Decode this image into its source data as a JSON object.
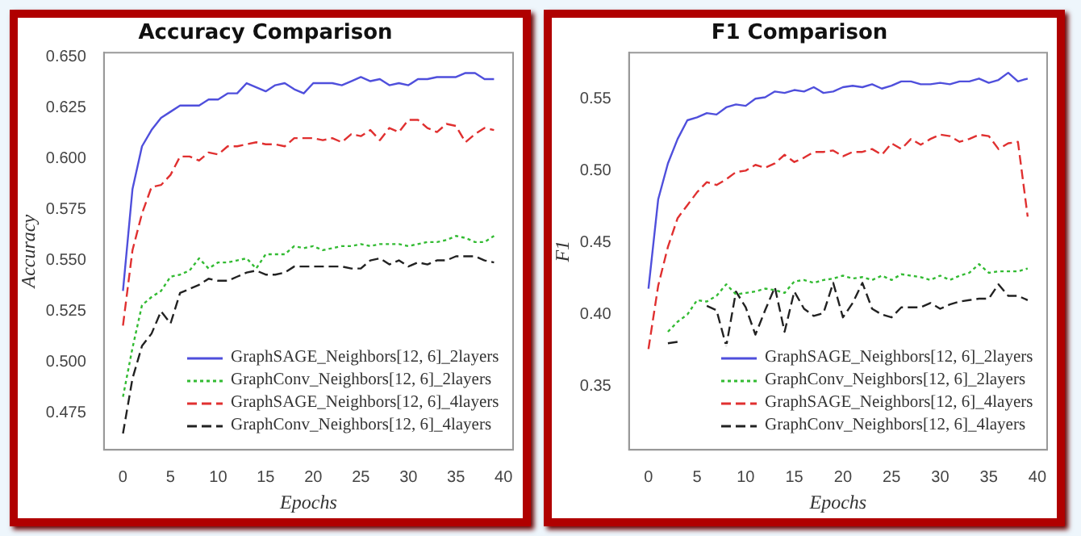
{
  "chart_data": [
    {
      "type": "line",
      "title": "Accuracy Comparison",
      "xlabel": "Epochs",
      "ylabel": "Accuracy",
      "x": [
        0,
        1,
        2,
        3,
        4,
        5,
        6,
        7,
        8,
        9,
        10,
        11,
        12,
        13,
        14,
        15,
        16,
        17,
        18,
        19,
        20,
        21,
        22,
        23,
        24,
        25,
        26,
        27,
        28,
        29,
        30,
        31,
        32,
        33,
        34,
        35,
        36,
        37,
        38,
        39
      ],
      "xlim": [
        -2,
        41
      ],
      "xticks": [
        0,
        5,
        10,
        15,
        20,
        25,
        30,
        35,
        40
      ],
      "ylim": [
        0.457,
        0.652
      ],
      "yticks": [
        0.475,
        {
          "value": 0.5,
          "label": "0.500"
        },
        0.525,
        {
          "value": 0.55,
          "label": "0.550"
        },
        0.575,
        {
          "value": 0.6,
          "label": "0.600"
        },
        0.625,
        {
          "value": 0.65,
          "label": "0.650"
        }
      ],
      "grid": false,
      "legend": "bottom right",
      "marker": "none",
      "series": [
        {
          "name": "GraphSAGE_Neighbors[12, 6]_2layers",
          "color": "#4f4fdc",
          "line_style": "solid",
          "values": [
            0.535,
            0.585,
            0.606,
            0.614,
            0.62,
            0.623,
            0.626,
            0.626,
            0.626,
            0.629,
            0.629,
            0.632,
            0.632,
            0.637,
            0.635,
            0.633,
            0.636,
            0.637,
            0.634,
            0.632,
            0.637,
            0.637,
            0.637,
            0.636,
            0.638,
            0.64,
            0.638,
            0.639,
            0.636,
            0.637,
            0.636,
            0.639,
            0.639,
            0.64,
            0.64,
            0.64,
            0.642,
            0.642,
            0.639,
            0.639
          ]
        },
        {
          "name": "GraphConv_Neighbors[12, 6]_2layers",
          "color": "#33bb33",
          "line_style": "dotted",
          "values": [
            0.483,
            0.507,
            0.528,
            0.532,
            0.535,
            0.542,
            0.543,
            0.545,
            0.551,
            0.546,
            0.549,
            0.549,
            0.55,
            0.551,
            0.546,
            0.553,
            0.553,
            0.553,
            0.557,
            0.556,
            0.557,
            0.555,
            0.556,
            0.557,
            0.557,
            0.558,
            0.557,
            0.558,
            0.558,
            0.558,
            0.557,
            0.558,
            0.559,
            0.559,
            0.56,
            0.562,
            0.561,
            0.559,
            0.559,
            0.562
          ]
        },
        {
          "name": "GraphSAGE_Neighbors[12, 6]_4layers",
          "color": "#e03030",
          "line_style": "dashed",
          "values": [
            0.518,
            0.555,
            0.573,
            0.586,
            0.587,
            0.592,
            0.601,
            0.601,
            0.599,
            0.603,
            0.602,
            0.606,
            0.606,
            0.607,
            0.608,
            0.607,
            0.607,
            0.606,
            0.61,
            0.61,
            0.61,
            0.609,
            0.61,
            0.608,
            0.612,
            0.611,
            0.614,
            0.609,
            0.615,
            0.613,
            0.619,
            0.619,
            0.615,
            0.613,
            0.617,
            0.616,
            0.608,
            0.612,
            0.615,
            0.614
          ]
        },
        {
          "name": "GraphConv_Neighbors[12, 6]_4layers",
          "color": "#222222",
          "line_style": "dashed",
          "values": [
            0.465,
            0.492,
            0.508,
            0.514,
            0.525,
            0.519,
            0.534,
            0.536,
            0.538,
            0.541,
            0.54,
            0.54,
            0.542,
            0.544,
            0.545,
            0.543,
            0.543,
            0.544,
            0.547,
            0.547,
            0.547,
            0.547,
            0.547,
            0.547,
            0.546,
            0.546,
            0.55,
            0.551,
            0.548,
            0.55,
            0.547,
            0.549,
            0.548,
            0.55,
            0.55,
            0.552,
            0.552,
            0.552,
            0.55,
            0.549
          ]
        }
      ]
    },
    {
      "type": "line",
      "title": "F1 Comparison",
      "xlabel": "Epochs",
      "ylabel": "F1",
      "x": [
        0,
        1,
        2,
        3,
        4,
        5,
        6,
        7,
        8,
        9,
        10,
        11,
        12,
        13,
        14,
        15,
        16,
        17,
        18,
        19,
        20,
        21,
        22,
        23,
        24,
        25,
        26,
        27,
        28,
        29,
        30,
        31,
        32,
        33,
        34,
        35,
        36,
        37,
        38,
        39
      ],
      "xlim": [
        -2,
        41
      ],
      "xticks": [
        0,
        5,
        10,
        15,
        20,
        25,
        30,
        35,
        40
      ],
      "ylim": [
        0.306,
        0.582
      ],
      "yticks": [
        0.35,
        {
          "value": 0.4,
          "label": "0.40"
        },
        0.45,
        {
          "value": 0.5,
          "label": "0.50"
        },
        0.55
      ],
      "grid": false,
      "legend": "bottom right",
      "marker": "none",
      "series": [
        {
          "name": "GraphSAGE_Neighbors[12, 6]_2layers",
          "color": "#4f4fdc",
          "line_style": "solid",
          "values": [
            0.418,
            0.48,
            0.505,
            0.522,
            0.535,
            0.537,
            0.54,
            0.539,
            0.544,
            0.546,
            0.545,
            0.55,
            0.551,
            0.555,
            0.554,
            0.556,
            0.555,
            0.558,
            0.554,
            0.555,
            0.558,
            0.559,
            0.558,
            0.56,
            0.557,
            0.559,
            0.562,
            0.562,
            0.56,
            0.56,
            0.561,
            0.56,
            0.562,
            0.562,
            0.564,
            0.561,
            0.563,
            0.568,
            0.562,
            0.564
          ]
        },
        {
          "name": "GraphConv_Neighbors[12, 6]_2layers",
          "color": "#33bb33",
          "line_style": "dotted",
          "values": [
            null,
            null,
            0.388,
            0.395,
            0.4,
            0.41,
            0.409,
            0.413,
            0.421,
            0.414,
            0.415,
            0.416,
            0.418,
            0.417,
            0.415,
            0.423,
            0.424,
            0.422,
            0.424,
            0.425,
            0.427,
            0.425,
            0.426,
            0.424,
            0.427,
            0.424,
            0.428,
            0.427,
            0.426,
            0.424,
            0.427,
            0.424,
            0.427,
            0.429,
            0.435,
            0.429,
            0.43,
            0.43,
            0.43,
            0.432
          ]
        },
        {
          "name": "GraphSAGE_Neighbors[12, 6]_4layers",
          "color": "#e03030",
          "line_style": "dashed",
          "values": [
            0.376,
            0.42,
            0.447,
            0.467,
            0.476,
            0.485,
            0.492,
            0.49,
            0.494,
            0.499,
            0.5,
            0.504,
            0.502,
            0.505,
            0.511,
            0.506,
            0.509,
            0.513,
            0.513,
            0.514,
            0.51,
            0.513,
            0.513,
            0.515,
            0.511,
            0.519,
            0.515,
            0.522,
            0.518,
            0.522,
            0.525,
            0.524,
            0.52,
            0.522,
            0.525,
            0.524,
            0.515,
            0.519,
            0.52,
            0.468
          ]
        },
        {
          "name": "GraphConv_Neighbors[12, 6]_4layers",
          "color": "#222222",
          "line_style": "dashed",
          "values": [
            null,
            null,
            0.38,
            0.381,
            null,
            null,
            0.406,
            0.403,
            0.378,
            0.416,
            0.405,
            0.386,
            0.403,
            0.419,
            0.388,
            0.416,
            0.404,
            0.399,
            0.401,
            0.422,
            0.398,
            0.408,
            0.422,
            0.404,
            0.4,
            0.398,
            0.405,
            0.405,
            0.405,
            0.408,
            0.404,
            0.407,
            0.409,
            0.41,
            0.411,
            0.411,
            0.421,
            0.413,
            0.413,
            0.41
          ]
        }
      ]
    }
  ]
}
